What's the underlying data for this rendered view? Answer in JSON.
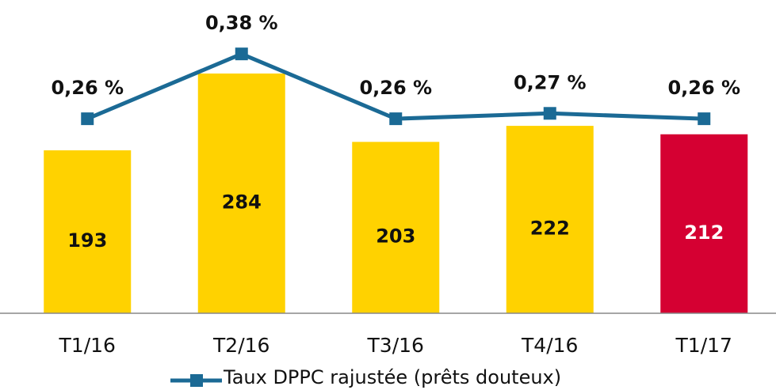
{
  "chart_data": {
    "type": "bar",
    "categories": [
      "T1/16",
      "T2/16",
      "T3/16",
      "T4/16",
      "T1/17"
    ],
    "ylim": [
      0,
      320
    ],
    "y2lim": [
      -0.1,
      0.4
    ],
    "legend": "bottom",
    "series": [
      {
        "type": "bar",
        "values": [
          193,
          284,
          203,
          222,
          212
        ],
        "colors": [
          "#FFD200",
          "#FFD200",
          "#FFD200",
          "#FFD200",
          "#D50032"
        ],
        "label_colors": [
          "#111111",
          "#111111",
          "#111111",
          "#111111",
          "#FFFFFF"
        ]
      },
      {
        "type": "line",
        "name": "Taux DPPC rajustée (prêts douteux)",
        "color": "#1B6A95",
        "axis": "y2",
        "values": [
          0.26,
          0.38,
          0.26,
          0.27,
          0.26
        ],
        "value_labels": [
          "0,26 %",
          "0,38 %",
          "0,26 %",
          "0,27 %",
          "0,26 %"
        ]
      }
    ]
  }
}
